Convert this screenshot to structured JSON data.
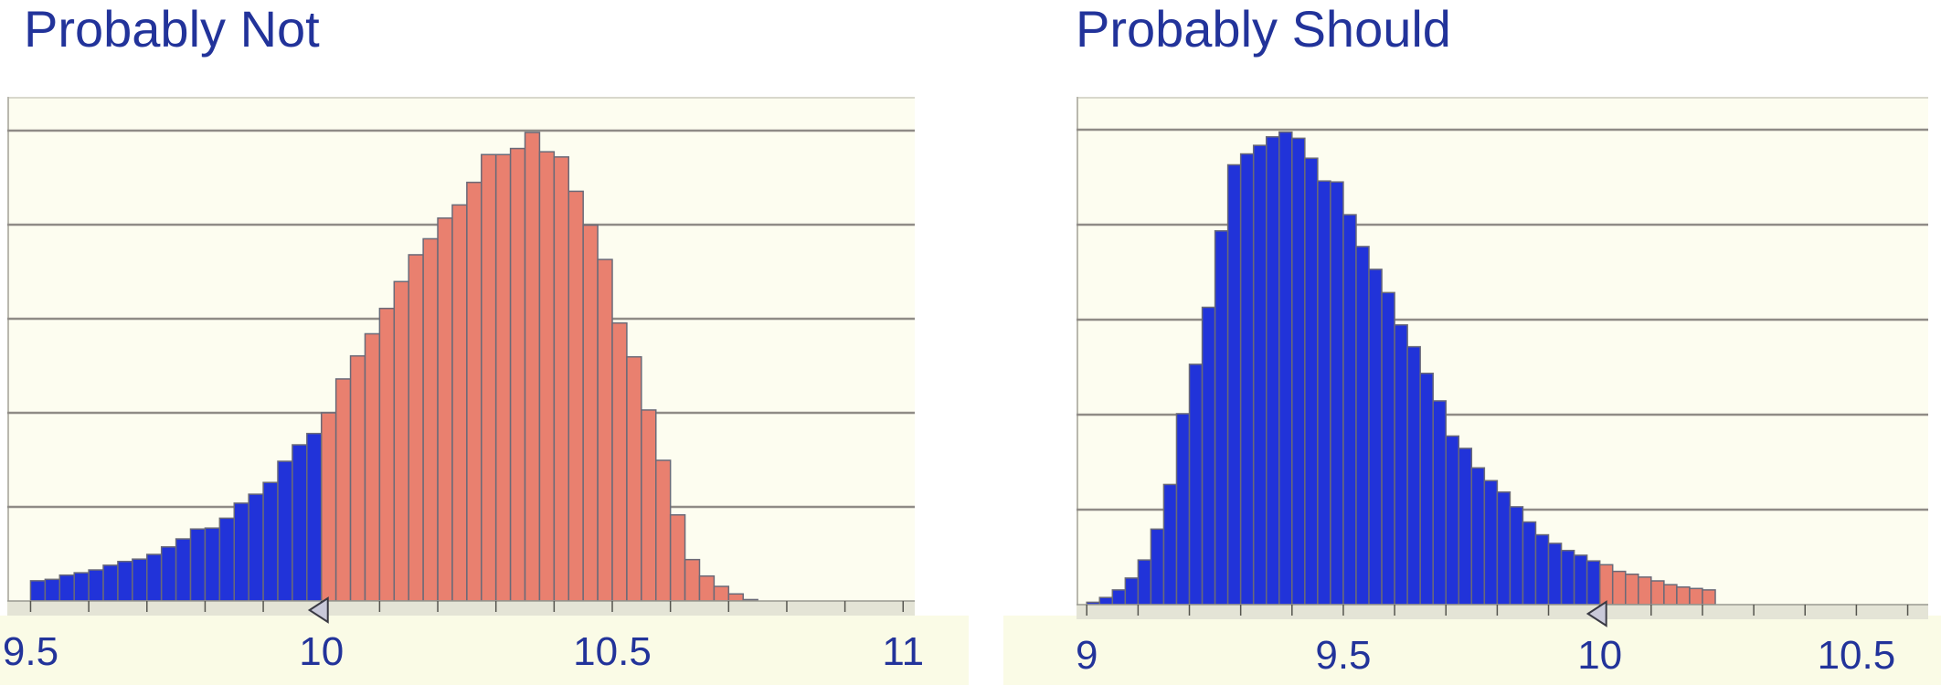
{
  "charts": {
    "left_title": "Probably Not",
    "right_title": "Probably Should"
  },
  "colors": {
    "below_threshold": "#2133d9",
    "above_threshold": "#e9806f",
    "plot_background": "#fdfdf0",
    "gridline": "#8f8b86",
    "title": "#22339a"
  },
  "chart_data": [
    {
      "type": "bar",
      "title": "Probably Not",
      "xlim": [
        9.46,
        11.02
      ],
      "xticks": [
        9.5,
        10,
        10.5,
        11
      ],
      "xtick_labels": [
        "9.5",
        "10",
        "10.5",
        "11"
      ],
      "ylim": [
        0,
        100
      ],
      "grid": true,
      "threshold": 10,
      "threshold_marker": "left-pointing triangle",
      "bin_width": 0.025,
      "bin_start": 9.5,
      "values": [
        4.3,
        4.6,
        5.5,
        6.0,
        6.6,
        7.6,
        8.4,
        8.9,
        9.9,
        11.5,
        13.2,
        15.3,
        15.5,
        17.6,
        20.8,
        22.7,
        25.2,
        29.7,
        33.2,
        35.6,
        40.0,
        47.2,
        52.1,
        56.8,
        62.2,
        67.9,
        73.6,
        77.0,
        81.4,
        84.2,
        89.0,
        94.9,
        94.9,
        96.2,
        99.6,
        95.5,
        94.4,
        87.1,
        79.9,
        72.6,
        59.1,
        51.9,
        40.6,
        29.9,
        18.3,
        8.8,
        5.3,
        3.1,
        1.5,
        0.3
      ]
    },
    {
      "type": "bar",
      "title": "Probably Should",
      "xlim": [
        8.98,
        10.64
      ],
      "xticks": [
        9,
        9.5,
        10,
        10.5
      ],
      "xtick_labels": [
        "9",
        "9.5",
        "10",
        "10.5"
      ],
      "ylim": [
        0,
        100
      ],
      "grid": true,
      "threshold": 10,
      "threshold_marker": "left-pointing triangle",
      "bin_width": 0.025,
      "bin_start": 9.0,
      "values": [
        0.5,
        1.5,
        3.1,
        5.6,
        9.4,
        15.9,
        25.3,
        40.2,
        50.6,
        62.6,
        78.7,
        92.6,
        94.9,
        96.7,
        98.5,
        99.5,
        98.2,
        94.0,
        89.2,
        89.0,
        82.1,
        75.4,
        70.6,
        65.7,
        58.9,
        54.3,
        48.7,
        42.9,
        35.5,
        32.9,
        28.8,
        26.1,
        23.7,
        20.6,
        17.4,
        14.7,
        12.9,
        11.4,
        10.4,
        9.2,
        8.4,
        7.0,
        6.4,
        5.8,
        5.0,
        4.2,
        3.7,
        3.4,
        3.1
      ]
    }
  ]
}
